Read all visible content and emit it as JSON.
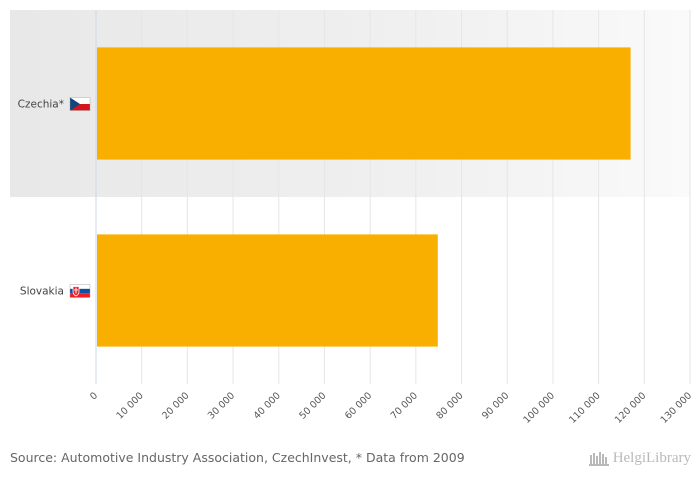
{
  "chart_data": {
    "type": "bar",
    "orientation": "horizontal",
    "categories": [
      "Czechia*",
      "Slovakia"
    ],
    "values": [
      117000,
      74800
    ],
    "xlim": [
      0,
      130000
    ],
    "xticks": [
      "0",
      "10 000",
      "20 000",
      "30 000",
      "40 000",
      "50 000",
      "60 000",
      "70 000",
      "80 000",
      "90 000",
      "100 000",
      "110 000",
      "120 000",
      "130 000"
    ],
    "bar_color": "#F9AF00",
    "highlight_row": 0,
    "grid": true
  },
  "flags": {
    "Czechia*": "czech-flag-icon",
    "Slovakia": "slovak-flag-icon"
  },
  "footer": {
    "source": "Source: Automotive Industry Association, CzechInvest, * Data from 2009"
  },
  "logo": {
    "text": "HelgiLibrary",
    "icon": "library-icon"
  }
}
